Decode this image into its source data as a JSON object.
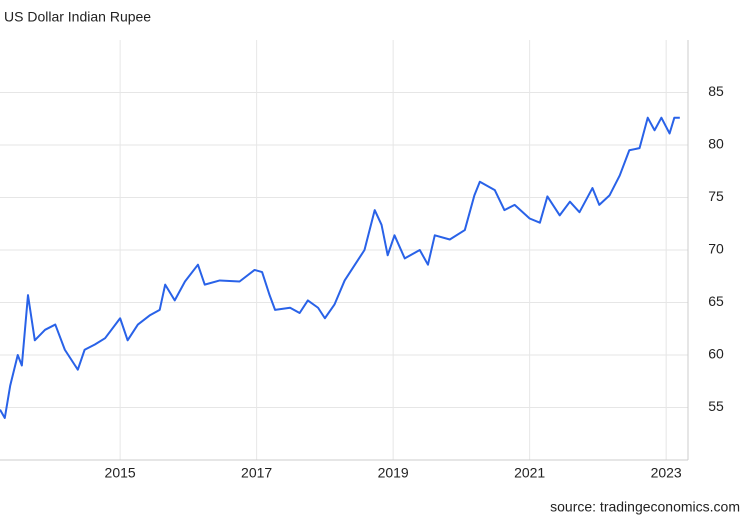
{
  "chart_data": {
    "type": "line",
    "title": "US Dollar Indian Rupee",
    "source": "source: tradingeconomics.com",
    "color": "#2962e8",
    "x": [
      2013.24,
      2013.31,
      2013.39,
      2013.5,
      2013.56,
      2013.65,
      2013.75,
      2013.9,
      2014.05,
      2014.19,
      2014.34,
      2014.38,
      2014.48,
      2014.63,
      2014.78,
      2015.0,
      2015.11,
      2015.26,
      2015.44,
      2015.58,
      2015.66,
      2015.8,
      2015.95,
      2016.14,
      2016.24,
      2016.46,
      2016.75,
      2016.97,
      2017.08,
      2017.19,
      2017.27,
      2017.49,
      2017.63,
      2017.75,
      2017.9,
      2018.0,
      2018.14,
      2018.29,
      2018.44,
      2018.58,
      2018.73,
      2018.83,
      2018.92,
      2019.02,
      2019.17,
      2019.39,
      2019.51,
      2019.61,
      2019.83,
      2020.05,
      2020.19,
      2020.27,
      2020.49,
      2020.63,
      2020.78,
      2021.0,
      2021.15,
      2021.26,
      2021.44,
      2021.59,
      2021.73,
      2021.92,
      2022.02,
      2022.17,
      2022.32,
      2022.46,
      2022.61,
      2022.73,
      2022.83,
      2022.93,
      2023.05,
      2023.12,
      2023.2
    ],
    "values": [
      54.8,
      54.0,
      57.1,
      60.0,
      59.0,
      65.7,
      61.4,
      62.4,
      62.9,
      60.5,
      59.0,
      58.6,
      60.5,
      61.0,
      61.6,
      63.5,
      61.4,
      62.9,
      63.8,
      64.3,
      66.7,
      65.2,
      67.0,
      68.6,
      66.7,
      67.1,
      67.0,
      68.1,
      67.9,
      65.7,
      64.3,
      64.5,
      64.0,
      65.2,
      64.5,
      63.5,
      64.8,
      67.1,
      68.6,
      70.0,
      73.8,
      72.4,
      69.5,
      71.4,
      69.2,
      70.0,
      68.6,
      71.4,
      71.0,
      71.9,
      75.2,
      76.5,
      75.7,
      73.8,
      74.3,
      73.0,
      72.6,
      75.1,
      73.3,
      74.6,
      73.6,
      75.9,
      74.3,
      75.2,
      77.1,
      79.5,
      79.7,
      82.6,
      81.4,
      82.6,
      81.1,
      82.6,
      82.6
    ],
    "xlim": [
      2013.24,
      2023.32
    ],
    "xticks": [
      2015,
      2017,
      2019,
      2021,
      2023
    ],
    "ylim": [
      50,
      90
    ],
    "yticks": [
      55,
      60,
      65,
      70,
      75,
      80,
      85
    ],
    "grid": true
  }
}
